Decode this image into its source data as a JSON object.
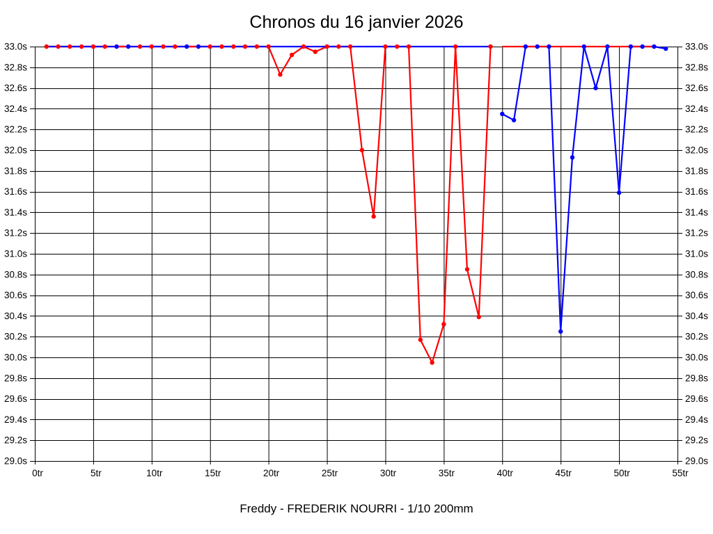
{
  "title": "Chronos du 16 janvier 2026",
  "subtitle": "Freddy - FREDERIK NOURRI - 1/10 200mm",
  "colors": {
    "red_series": "#ff0000",
    "blue_series": "#0000ff",
    "grid": "#000000",
    "background": "#ffffff",
    "text": "#000000"
  },
  "chart_data": {
    "type": "line",
    "title": "Chronos du 16 janvier 2026",
    "xlabel": "",
    "ylabel": "",
    "xlim": [
      0,
      55
    ],
    "ylim": [
      29.0,
      33.0
    ],
    "grid": true,
    "x_ticks": {
      "values": [
        0,
        5,
        10,
        15,
        20,
        25,
        30,
        35,
        40,
        45,
        50,
        55
      ],
      "labels": [
        "0tr",
        "5tr",
        "10tr",
        "15tr",
        "20tr",
        "25tr",
        "30tr",
        "35tr",
        "40tr",
        "45tr",
        "50tr",
        "55tr"
      ]
    },
    "y_ticks": {
      "values": [
        33.0,
        32.8,
        32.6,
        32.4,
        32.2,
        32.0,
        31.8,
        31.6,
        31.4,
        31.2,
        31.0,
        30.8,
        30.6,
        30.4,
        30.2,
        30.0,
        29.8,
        29.6,
        29.4,
        29.2,
        29.0
      ],
      "labels": [
        "33.0s",
        "32.8s",
        "32.6s",
        "32.4s",
        "32.2s",
        "32.0s",
        "31.8s",
        "31.6s",
        "31.4s",
        "31.2s",
        "31.0s",
        "30.8s",
        "30.6s",
        "30.4s",
        "30.2s",
        "30.0s",
        "29.8s",
        "29.6s",
        "29.4s",
        "29.2s",
        "29.0s"
      ]
    },
    "series": [
      {
        "name": "red-run-laps-1-39",
        "color": "#ff0000",
        "x": [
          1,
          2,
          3,
          4,
          5,
          6,
          7,
          8,
          9,
          10,
          11,
          12,
          13,
          14,
          15,
          16,
          17,
          18,
          19,
          20,
          21,
          22,
          23,
          24,
          25,
          26,
          27,
          28,
          29,
          30,
          31,
          32,
          33,
          34,
          35,
          36,
          37,
          38,
          39
        ],
        "values": [
          33,
          33,
          33,
          33,
          33,
          33,
          33,
          33,
          33,
          33,
          33,
          33,
          33,
          33,
          33,
          33,
          33,
          33,
          33,
          33,
          32.73,
          32.92,
          33,
          32.95,
          33,
          33,
          33,
          32.0,
          31.36,
          33,
          33,
          33,
          30.17,
          29.95,
          30.32,
          33,
          30.85,
          30.39,
          33
        ],
        "marker_x": [
          1,
          2,
          3,
          4,
          5,
          6,
          9,
          10,
          11,
          12,
          15,
          16,
          17,
          18,
          19,
          20,
          21,
          22,
          23,
          24,
          25,
          26,
          27,
          28,
          29,
          30,
          31,
          32,
          33,
          34,
          35,
          36,
          37,
          38,
          39
        ]
      },
      {
        "name": "blue-flat-laps-1-39",
        "color": "#0000ff",
        "x": [
          1,
          2,
          3,
          4,
          5,
          6,
          7,
          8,
          9,
          10,
          11,
          12,
          13,
          14,
          15,
          16,
          17,
          18,
          19,
          20,
          21,
          22,
          23,
          24,
          25,
          26,
          27,
          28,
          29,
          30,
          31,
          32,
          33,
          34,
          35,
          36,
          37,
          38,
          39
        ],
        "values": [
          33,
          33,
          33,
          33,
          33,
          33,
          33,
          33,
          33,
          33,
          33,
          33,
          33,
          33,
          33,
          33,
          33,
          33,
          33,
          33,
          33,
          33,
          33,
          33,
          33,
          33,
          33,
          33,
          33,
          33,
          33,
          33,
          33,
          33,
          33,
          33,
          33,
          33,
          33
        ],
        "marker_x": [
          7,
          8,
          13,
          14
        ]
      },
      {
        "name": "red-overlay-laps-7-8",
        "color": "#ff0000",
        "x": [
          7,
          8
        ],
        "values": [
          33,
          33
        ],
        "marker_x": []
      },
      {
        "name": "red-overlay-laps-13-14",
        "color": "#ff0000",
        "x": [
          13,
          14
        ],
        "values": [
          33,
          33
        ],
        "marker_x": []
      },
      {
        "name": "blue-run-laps-40-54",
        "color": "#0000ff",
        "x": [
          40,
          41,
          42,
          43,
          44,
          45,
          46,
          47,
          48,
          49,
          50,
          51,
          52,
          53,
          54
        ],
        "values": [
          32.35,
          32.29,
          33,
          33,
          33,
          30.25,
          31.93,
          33,
          32.6,
          33,
          31.59,
          33,
          33,
          33,
          32.98
        ],
        "marker_x": [
          40,
          41,
          42,
          43,
          44,
          45,
          46,
          47,
          48,
          49,
          50,
          51,
          52,
          53,
          54
        ]
      },
      {
        "name": "red-flat-laps-40-53",
        "color": "#ff0000",
        "x": [
          40,
          41,
          42,
          43,
          44,
          45,
          46,
          47,
          48,
          49,
          50,
          51,
          52,
          53
        ],
        "values": [
          33,
          33,
          33,
          33,
          33,
          33,
          33,
          33,
          33,
          33,
          33,
          33,
          33,
          33
        ],
        "marker_x": []
      }
    ]
  }
}
